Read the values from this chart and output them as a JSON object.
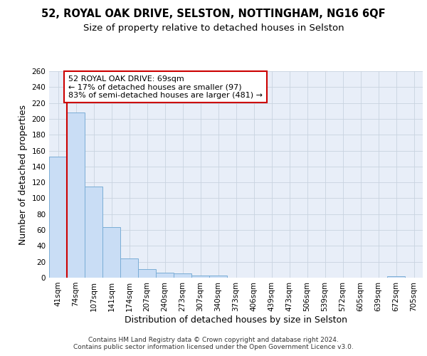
{
  "title_line1": "52, ROYAL OAK DRIVE, SELSTON, NOTTINGHAM, NG16 6QF",
  "title_line2": "Size of property relative to detached houses in Selston",
  "xlabel": "Distribution of detached houses by size in Selston",
  "ylabel": "Number of detached properties",
  "bar_labels": [
    "41sqm",
    "74sqm",
    "107sqm",
    "141sqm",
    "174sqm",
    "207sqm",
    "240sqm",
    "273sqm",
    "307sqm",
    "340sqm",
    "373sqm",
    "406sqm",
    "439sqm",
    "473sqm",
    "506sqm",
    "539sqm",
    "572sqm",
    "605sqm",
    "639sqm",
    "672sqm",
    "705sqm"
  ],
  "bar_values": [
    152,
    208,
    115,
    64,
    24,
    11,
    6,
    5,
    3,
    3,
    0,
    0,
    0,
    0,
    0,
    0,
    0,
    0,
    0,
    2,
    0
  ],
  "bar_color": "#c9ddf5",
  "bar_edge_color": "#7aadd6",
  "grid_color": "#c8d3e0",
  "background_color": "#e8eef8",
  "vline_color": "#cc0000",
  "annotation_text": "52 ROYAL OAK DRIVE: 69sqm\n← 17% of detached houses are smaller (97)\n83% of semi-detached houses are larger (481) →",
  "annotation_box_color": "#ffffff",
  "annotation_box_edgecolor": "#cc0000",
  "ylim_max": 260,
  "yticks": [
    0,
    20,
    40,
    60,
    80,
    100,
    120,
    140,
    160,
    180,
    200,
    220,
    240,
    260
  ],
  "footer": "Contains HM Land Registry data © Crown copyright and database right 2024.\nContains public sector information licensed under the Open Government Licence v3.0.",
  "title_fontsize": 10.5,
  "subtitle_fontsize": 9.5,
  "axis_label_fontsize": 9,
  "tick_fontsize": 7.5,
  "annotation_fontsize": 8,
  "footer_fontsize": 6.5
}
